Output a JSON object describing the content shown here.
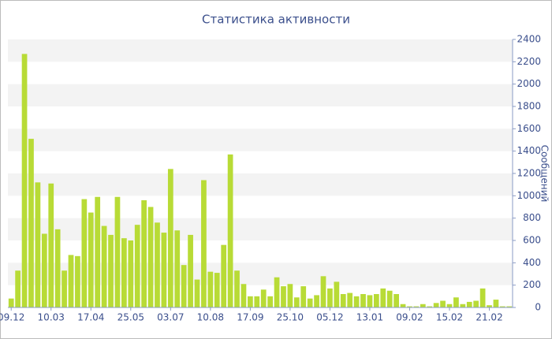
{
  "chart_data": {
    "type": "bar",
    "title": "Статистика активности",
    "y_label": "Сообщений",
    "categories": [
      "09.12",
      null,
      null,
      null,
      null,
      null,
      "10.03",
      null,
      null,
      null,
      null,
      null,
      "17.04",
      null,
      null,
      null,
      null,
      null,
      "25.05",
      null,
      null,
      null,
      null,
      null,
      "03.07",
      null,
      null,
      null,
      null,
      null,
      "10.08",
      null,
      null,
      null,
      null,
      null,
      "17.09",
      null,
      null,
      null,
      null,
      null,
      "25.10",
      null,
      null,
      null,
      null,
      null,
      "05.12",
      null,
      null,
      null,
      null,
      null,
      "13.01",
      null,
      null,
      null,
      null,
      null,
      "09.02",
      null,
      null,
      null,
      null,
      null,
      "15.02",
      null,
      null,
      null,
      null,
      null,
      "21.02",
      null,
      null,
      null
    ],
    "values": [
      80,
      330,
      2270,
      1510,
      1120,
      660,
      1110,
      700,
      330,
      470,
      460,
      970,
      850,
      990,
      730,
      650,
      990,
      620,
      600,
      740,
      960,
      900,
      760,
      670,
      1240,
      690,
      380,
      650,
      250,
      1140,
      320,
      310,
      560,
      1370,
      330,
      210,
      100,
      100,
      160,
      100,
      270,
      190,
      210,
      90,
      190,
      80,
      110,
      280,
      170,
      230,
      120,
      130,
      100,
      120,
      110,
      120,
      170,
      150,
      120,
      30,
      10,
      10,
      30,
      10,
      40,
      60,
      30,
      90,
      30,
      50,
      60,
      170,
      20,
      70,
      10,
      10
    ],
    "color": "#b8db36",
    "ylim": [
      0,
      2400
    ],
    "yticks": [
      0,
      200,
      400,
      600,
      800,
      1000,
      1200,
      1400,
      1600,
      1800,
      2000,
      2200,
      2400
    ],
    "grid": true
  }
}
